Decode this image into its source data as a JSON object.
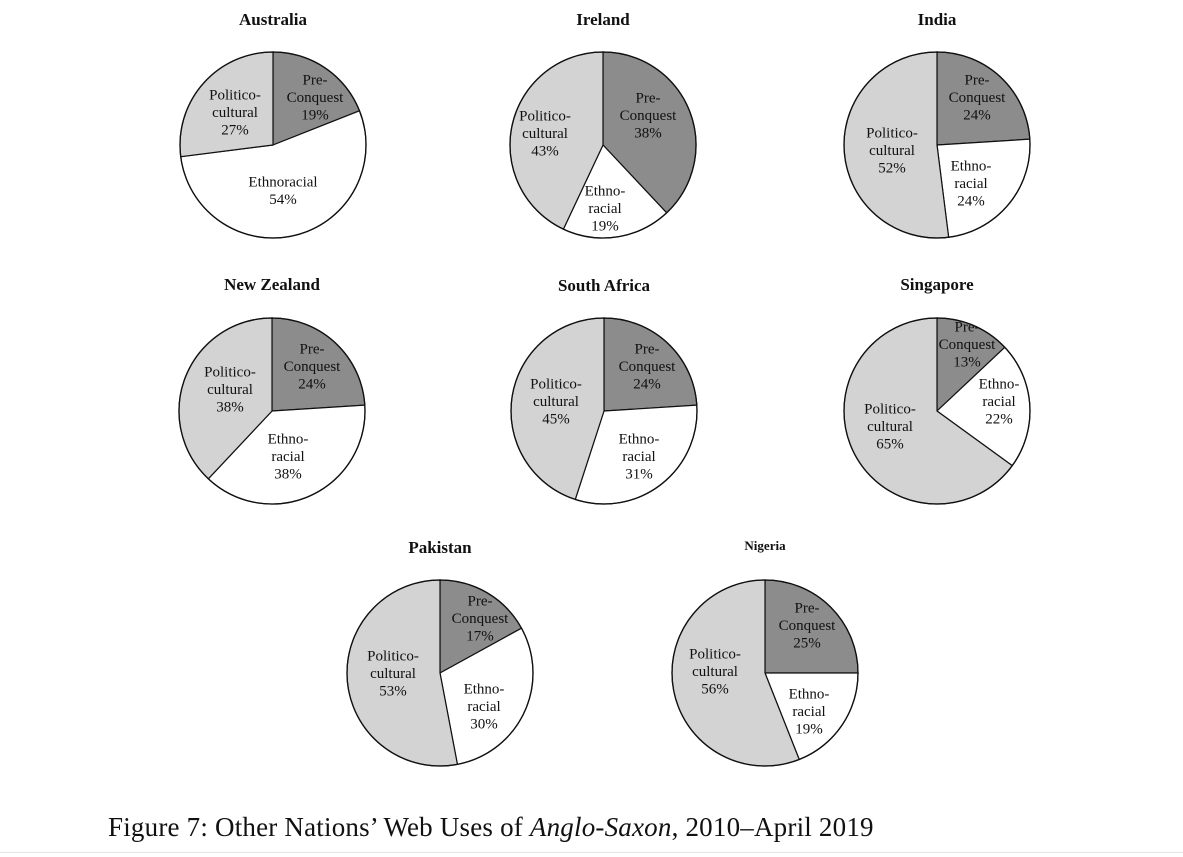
{
  "figure": {
    "caption_prefix": "Figure 7: Other Nations’ Web Uses of ",
    "caption_italic": "Anglo-Saxon",
    "caption_suffix": ", 2010–April 2019"
  },
  "colors": {
    "Pre-Conquest": "#8c8c8c",
    "Ethnoracial": "#ffffff",
    "Politico-cultural": "#d3d3d3"
  },
  "chart_data": [
    {
      "type": "pie",
      "title": "Australia",
      "slices": [
        {
          "category": "Pre-Conquest",
          "value": 19,
          "label": [
            "Pre-",
            "Conquest",
            "19%"
          ]
        },
        {
          "category": "Ethnoracial",
          "value": 54,
          "label": [
            "Ethnoracial",
            "54%"
          ]
        },
        {
          "category": "Politico-cultural",
          "value": 27,
          "label": [
            "Politico-",
            "cultural",
            "27%"
          ]
        }
      ]
    },
    {
      "type": "pie",
      "title": "Ireland",
      "slices": [
        {
          "category": "Pre-Conquest",
          "value": 38,
          "label": [
            "Pre-",
            "Conquest",
            "38%"
          ]
        },
        {
          "category": "Ethnoracial",
          "value": 19,
          "label": [
            "Ethno-",
            "racial",
            "19%"
          ]
        },
        {
          "category": "Politico-cultural",
          "value": 43,
          "label": [
            "Politico-",
            "cultural",
            "43%"
          ]
        }
      ]
    },
    {
      "type": "pie",
      "title": "India",
      "slices": [
        {
          "category": "Pre-Conquest",
          "value": 24,
          "label": [
            "Pre-",
            "Conquest",
            "24%"
          ]
        },
        {
          "category": "Ethnoracial",
          "value": 24,
          "label": [
            "Ethno-",
            "racial",
            "24%"
          ]
        },
        {
          "category": "Politico-cultural",
          "value": 52,
          "label": [
            "Politico-",
            "cultural",
            "52%"
          ]
        }
      ]
    },
    {
      "type": "pie",
      "title": "New Zealand",
      "slices": [
        {
          "category": "Pre-Conquest",
          "value": 24,
          "label": [
            "Pre-",
            "Conquest",
            "24%"
          ]
        },
        {
          "category": "Ethnoracial",
          "value": 38,
          "label": [
            "Ethno-",
            "racial",
            "38%"
          ]
        },
        {
          "category": "Politico-cultural",
          "value": 38,
          "label": [
            "Politico-",
            "cultural",
            "38%"
          ]
        }
      ]
    },
    {
      "type": "pie",
      "title": "South Africa",
      "slices": [
        {
          "category": "Pre-Conquest",
          "value": 24,
          "label": [
            "Pre-",
            "Conquest",
            "24%"
          ]
        },
        {
          "category": "Ethnoracial",
          "value": 31,
          "label": [
            "Ethno-",
            "racial",
            "31%"
          ]
        },
        {
          "category": "Politico-cultural",
          "value": 45,
          "label": [
            "Politico-",
            "cultural",
            "45%"
          ]
        }
      ]
    },
    {
      "type": "pie",
      "title": "Singapore",
      "slices": [
        {
          "category": "Pre-Conquest",
          "value": 13,
          "label": [
            "Pre-",
            "Conquest",
            "13%"
          ]
        },
        {
          "category": "Ethnoracial",
          "value": 22,
          "label": [
            "Ethno-",
            "racial",
            "22%"
          ]
        },
        {
          "category": "Politico-cultural",
          "value": 65,
          "label": [
            "Politico-",
            "cultural",
            "65%"
          ]
        }
      ]
    },
    {
      "type": "pie",
      "title": "Pakistan",
      "slices": [
        {
          "category": "Pre-Conquest",
          "value": 17,
          "label": [
            "Pre-",
            "Conquest",
            "17%"
          ]
        },
        {
          "category": "Ethnoracial",
          "value": 30,
          "label": [
            "Ethno-",
            "racial",
            "30%"
          ]
        },
        {
          "category": "Politico-cultural",
          "value": 53,
          "label": [
            "Politico-",
            "cultural",
            "53%"
          ]
        }
      ]
    },
    {
      "type": "pie",
      "title": "Nigeria",
      "slices": [
        {
          "category": "Pre-Conquest",
          "value": 25,
          "label": [
            "Pre-",
            "Conquest",
            "25%"
          ]
        },
        {
          "category": "Ethnoracial",
          "value": 19,
          "label": [
            "Ethno-",
            "racial",
            "19%"
          ]
        },
        {
          "category": "Politico-cultural",
          "value": 56,
          "label": [
            "Politico-",
            "cultural",
            "56%"
          ]
        }
      ]
    }
  ]
}
